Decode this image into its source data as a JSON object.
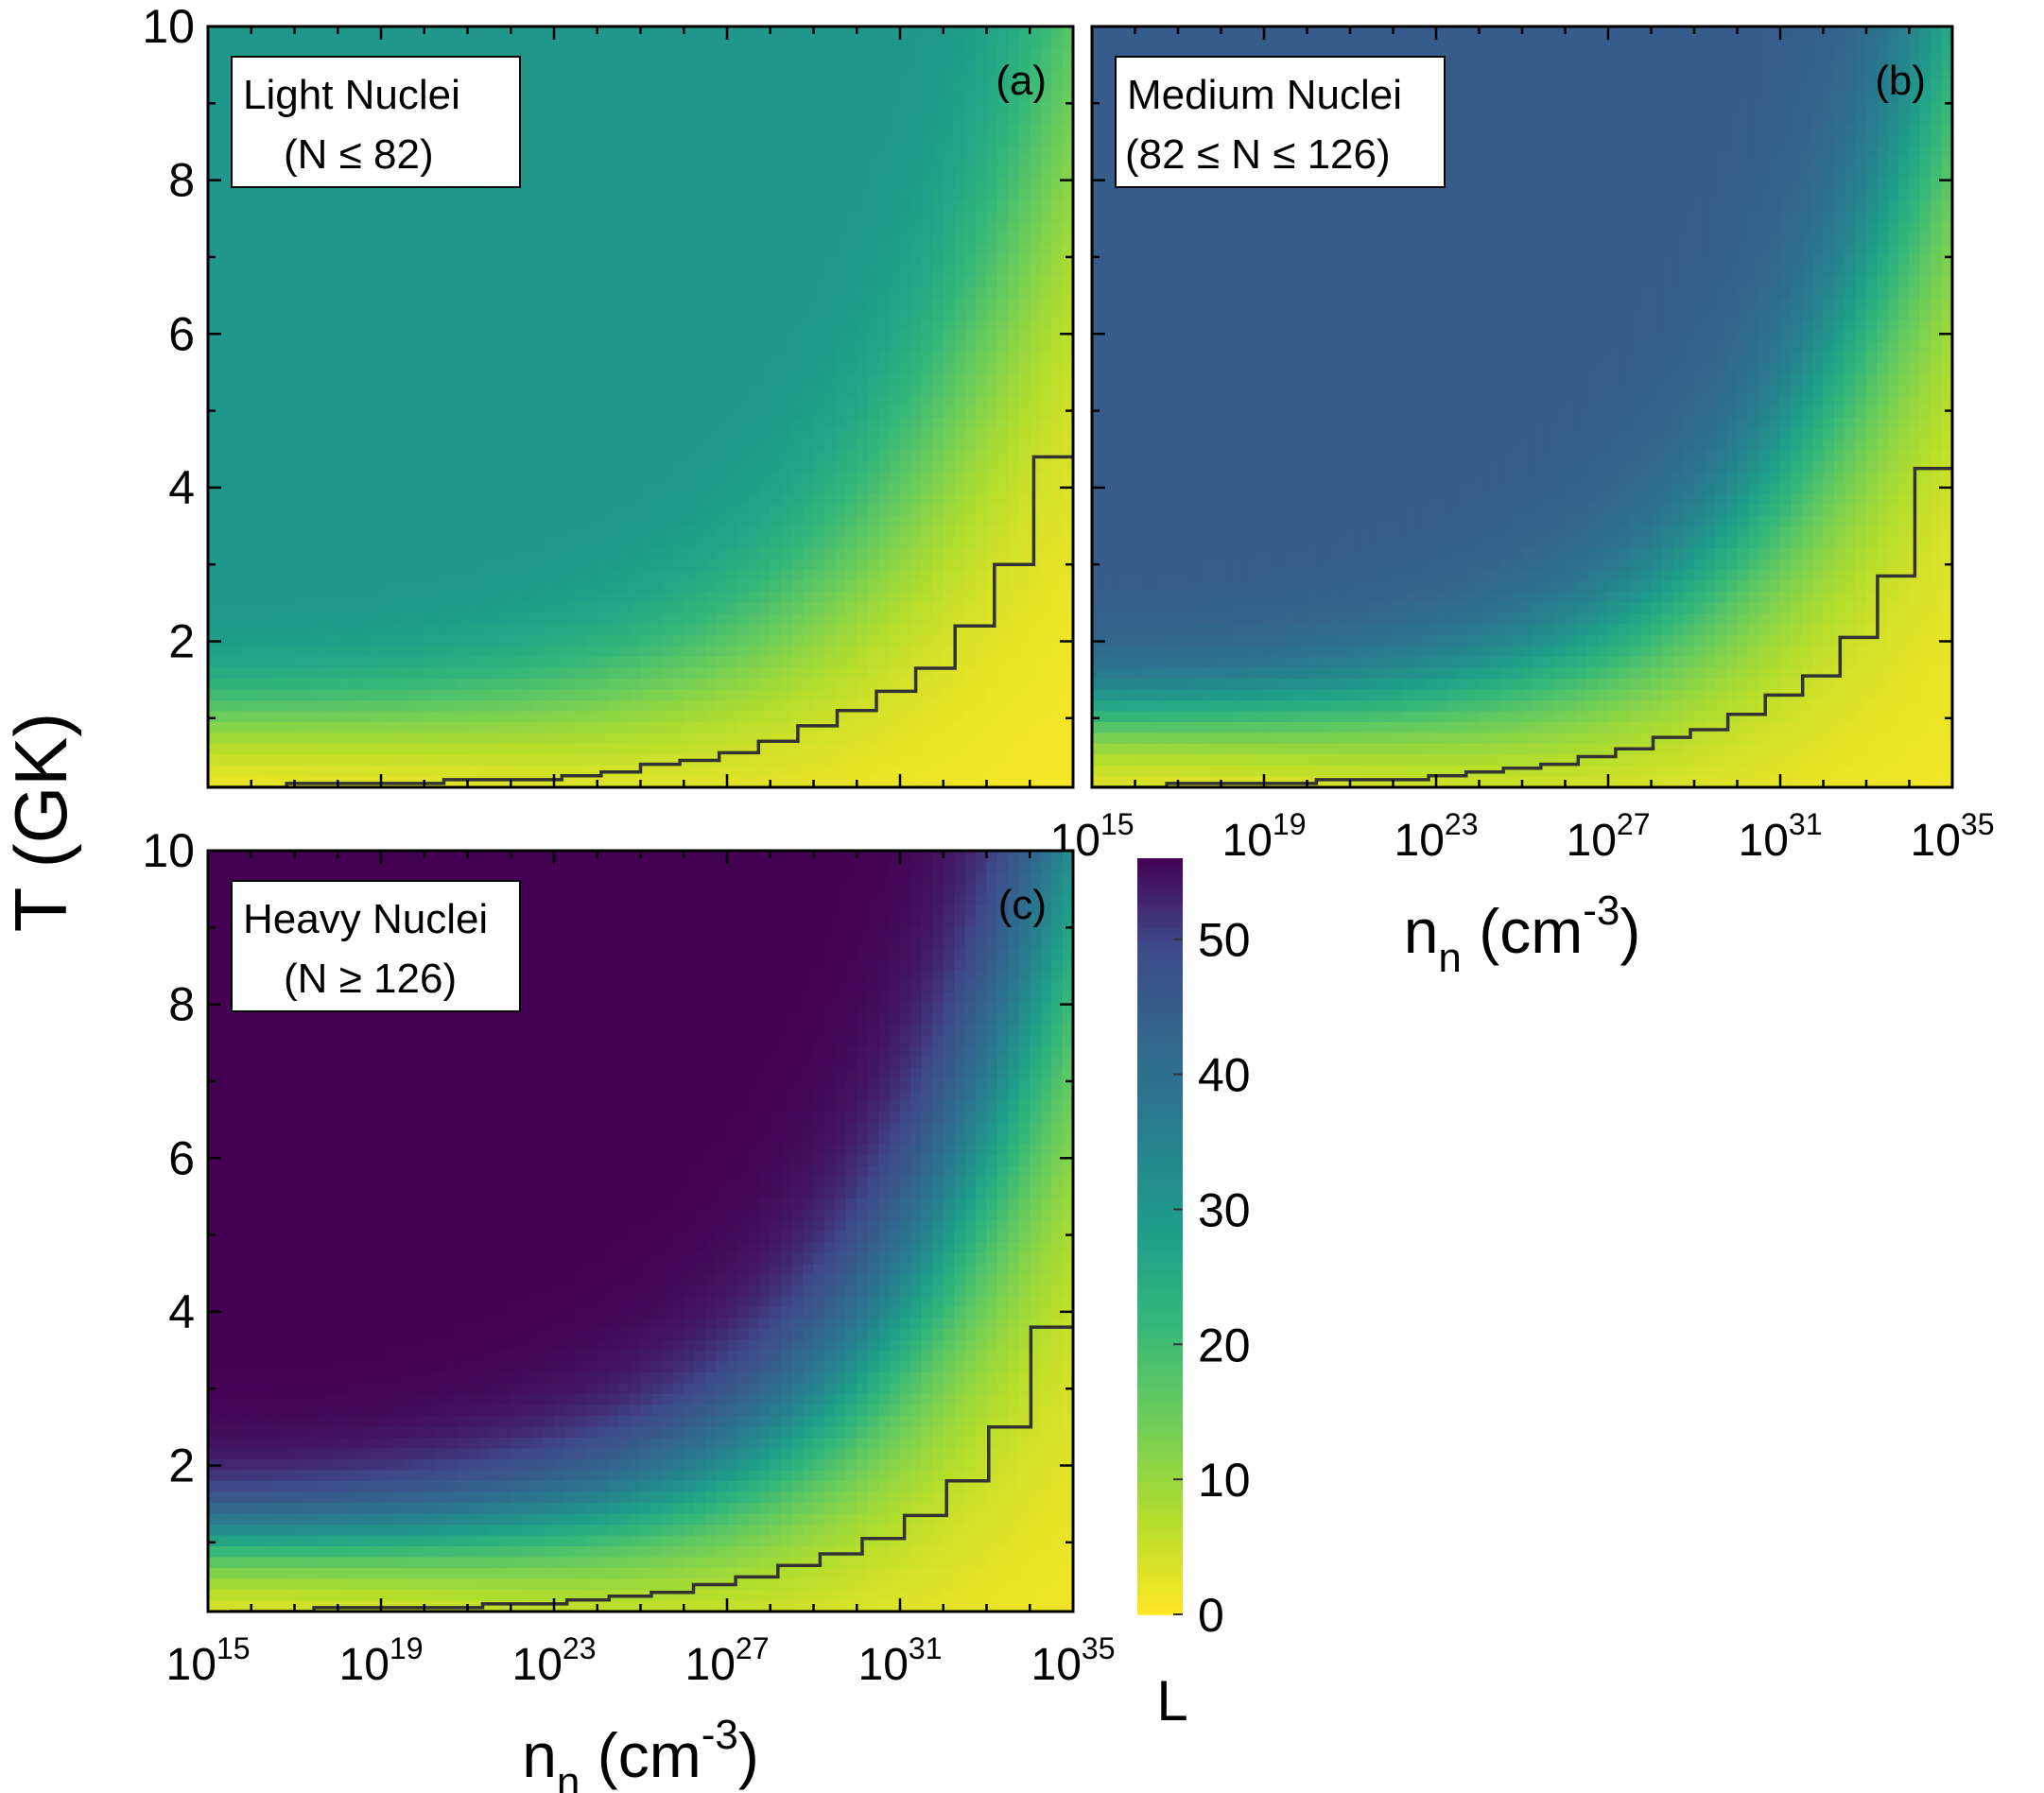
{
  "figure": {
    "shared_ylabel": "T (GK)",
    "colorbar": {
      "label": "L",
      "ticks": [
        "0",
        "10",
        "20",
        "30",
        "40",
        "50"
      ],
      "range": [
        0,
        56
      ],
      "colormap": "viridis (reversed: yellow = 0, dark purple = high)"
    }
  },
  "chart_data": [
    {
      "type": "heatmap",
      "panel_label": "(a)",
      "legend_title": "Light Nuclei",
      "legend_sub": "(N ≤ 82)",
      "xlabel": "",
      "ylabel": "T (GK)",
      "x_scale": "log",
      "xlim": [
        1000000000000000.0,
        1e+35
      ],
      "ylim": [
        0.1,
        10
      ],
      "xticks": [
        "10^15",
        "10^19",
        "10^23",
        "10^27",
        "10^31",
        "10^35"
      ],
      "x_tick_labels_shown": false,
      "yticks": [
        "2",
        "4",
        "6",
        "8",
        "10"
      ],
      "max_L": 30,
      "boundary_step_T": [
        0.1,
        0.1,
        0.15,
        0.15,
        0.15,
        0.15,
        0.2,
        0.2,
        0.2,
        0.25,
        0.3,
        0.4,
        0.45,
        0.55,
        0.7,
        0.9,
        1.1,
        1.35,
        1.65,
        2.2,
        3.0,
        4.4
      ],
      "boundary_start_log_nn": 15.0
    },
    {
      "type": "heatmap",
      "panel_label": "(b)",
      "legend_title": "Medium Nuclei",
      "legend_sub": "(82 ≤ N ≤ 126)",
      "xlabel": "n_n (cm^-3)",
      "ylabel": "",
      "x_scale": "log",
      "xlim": [
        1000000000000000.0,
        1e+35
      ],
      "ylim": [
        0.1,
        10
      ],
      "xticks": [
        "10^15",
        "10^19",
        "10^23",
        "10^27",
        "10^31",
        "10^35"
      ],
      "x_tick_labels_shown": true,
      "yticks": [
        "2",
        "4",
        "6",
        "8",
        "10"
      ],
      "max_L": 45,
      "boundary_step_T": [
        0.1,
        0.1,
        0.15,
        0.15,
        0.15,
        0.15,
        0.2,
        0.2,
        0.2,
        0.25,
        0.3,
        0.35,
        0.4,
        0.5,
        0.6,
        0.75,
        0.85,
        1.05,
        1.3,
        1.55,
        2.05,
        2.85,
        4.25
      ],
      "boundary_start_log_nn": 15.0
    },
    {
      "type": "heatmap",
      "panel_label": "(c)",
      "legend_title": "Heavy Nuclei",
      "legend_sub": "(N ≥ 126)",
      "xlabel": "n_n (cm^-3)",
      "ylabel": "T (GK)",
      "x_scale": "log",
      "xlim": [
        1000000000000000.0,
        1e+35
      ],
      "ylim": [
        0.1,
        10
      ],
      "xticks": [
        "10^15",
        "10^19",
        "10^23",
        "10^27",
        "10^31",
        "10^35"
      ],
      "x_tick_labels_shown": true,
      "yticks": [
        "2",
        "4",
        "6",
        "8",
        "10"
      ],
      "max_L": 56,
      "boundary_step_T": [
        0.1,
        0.1,
        0.15,
        0.15,
        0.15,
        0.15,
        0.2,
        0.2,
        0.25,
        0.3,
        0.35,
        0.45,
        0.55,
        0.7,
        0.85,
        1.05,
        1.35,
        1.8,
        2.5,
        3.8
      ],
      "boundary_start_log_nn": 15.5
    }
  ]
}
